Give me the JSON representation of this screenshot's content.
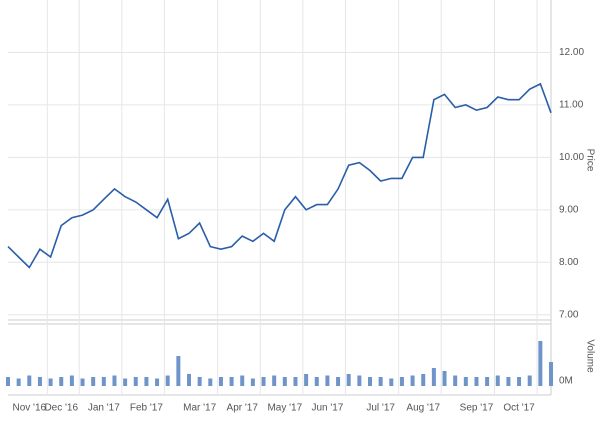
{
  "chart_data": {
    "type": "line",
    "categories": [
      null,
      null,
      "Nov '16",
      null,
      null,
      "Dec '16",
      null,
      null,
      null,
      "Jan '17",
      null,
      null,
      null,
      "Feb '17",
      null,
      null,
      null,
      null,
      "Mar '17",
      null,
      null,
      null,
      "Apr '17",
      null,
      null,
      null,
      "May '17",
      null,
      null,
      null,
      "Jun '17",
      null,
      null,
      null,
      null,
      "Jul '17",
      null,
      null,
      null,
      "Aug '17",
      null,
      null,
      null,
      null,
      "Sep '17",
      null,
      null,
      null,
      "Oct '17",
      null,
      null,
      null
    ],
    "series": [
      {
        "name": "Price",
        "color": "#2a5ea8",
        "values": [
          8.3,
          8.1,
          7.9,
          8.25,
          8.1,
          8.7,
          8.85,
          8.9,
          9.0,
          9.2,
          9.4,
          9.25,
          9.15,
          9.0,
          8.85,
          9.2,
          8.45,
          8.55,
          8.75,
          8.3,
          8.25,
          8.3,
          8.5,
          8.4,
          8.55,
          8.4,
          9.0,
          9.25,
          9.0,
          9.1,
          9.1,
          9.4,
          9.85,
          9.9,
          9.75,
          9.55,
          9.6,
          9.6,
          10.0,
          10.0,
          11.1,
          11.2,
          10.95,
          11.0,
          10.9,
          10.95,
          11.15,
          11.1,
          11.1,
          11.3,
          11.4,
          10.85
        ]
      },
      {
        "name": "Volume",
        "color": "#6f94c9",
        "axis": "y2",
        "values": [
          0.3,
          0.25,
          0.35,
          0.3,
          0.25,
          0.3,
          0.35,
          0.25,
          0.3,
          0.3,
          0.35,
          0.25,
          0.3,
          0.3,
          0.25,
          0.35,
          1.0,
          0.4,
          0.3,
          0.25,
          0.3,
          0.3,
          0.35,
          0.25,
          0.3,
          0.35,
          0.3,
          0.3,
          0.4,
          0.3,
          0.35,
          0.3,
          0.4,
          0.35,
          0.3,
          0.3,
          0.25,
          0.3,
          0.35,
          0.4,
          0.6,
          0.5,
          0.35,
          0.3,
          0.3,
          0.3,
          0.35,
          0.3,
          0.3,
          0.35,
          1.5,
          0.8
        ]
      }
    ],
    "ylabel": "Price",
    "y2label": "Volume",
    "ylim": [
      6.9,
      13.0
    ],
    "yticks": [
      {
        "value": 7,
        "label": "7.00"
      },
      {
        "value": 8,
        "label": "8.00"
      },
      {
        "value": 9,
        "label": "9.00"
      },
      {
        "value": 10,
        "label": "10.00"
      },
      {
        "value": 11,
        "label": "11.00"
      },
      {
        "value": 12,
        "label": "12.00"
      }
    ],
    "y2lim": [
      0,
      2
    ],
    "y2ticks": [
      {
        "value": 0,
        "label": "0M"
      }
    ],
    "grid": true
  }
}
